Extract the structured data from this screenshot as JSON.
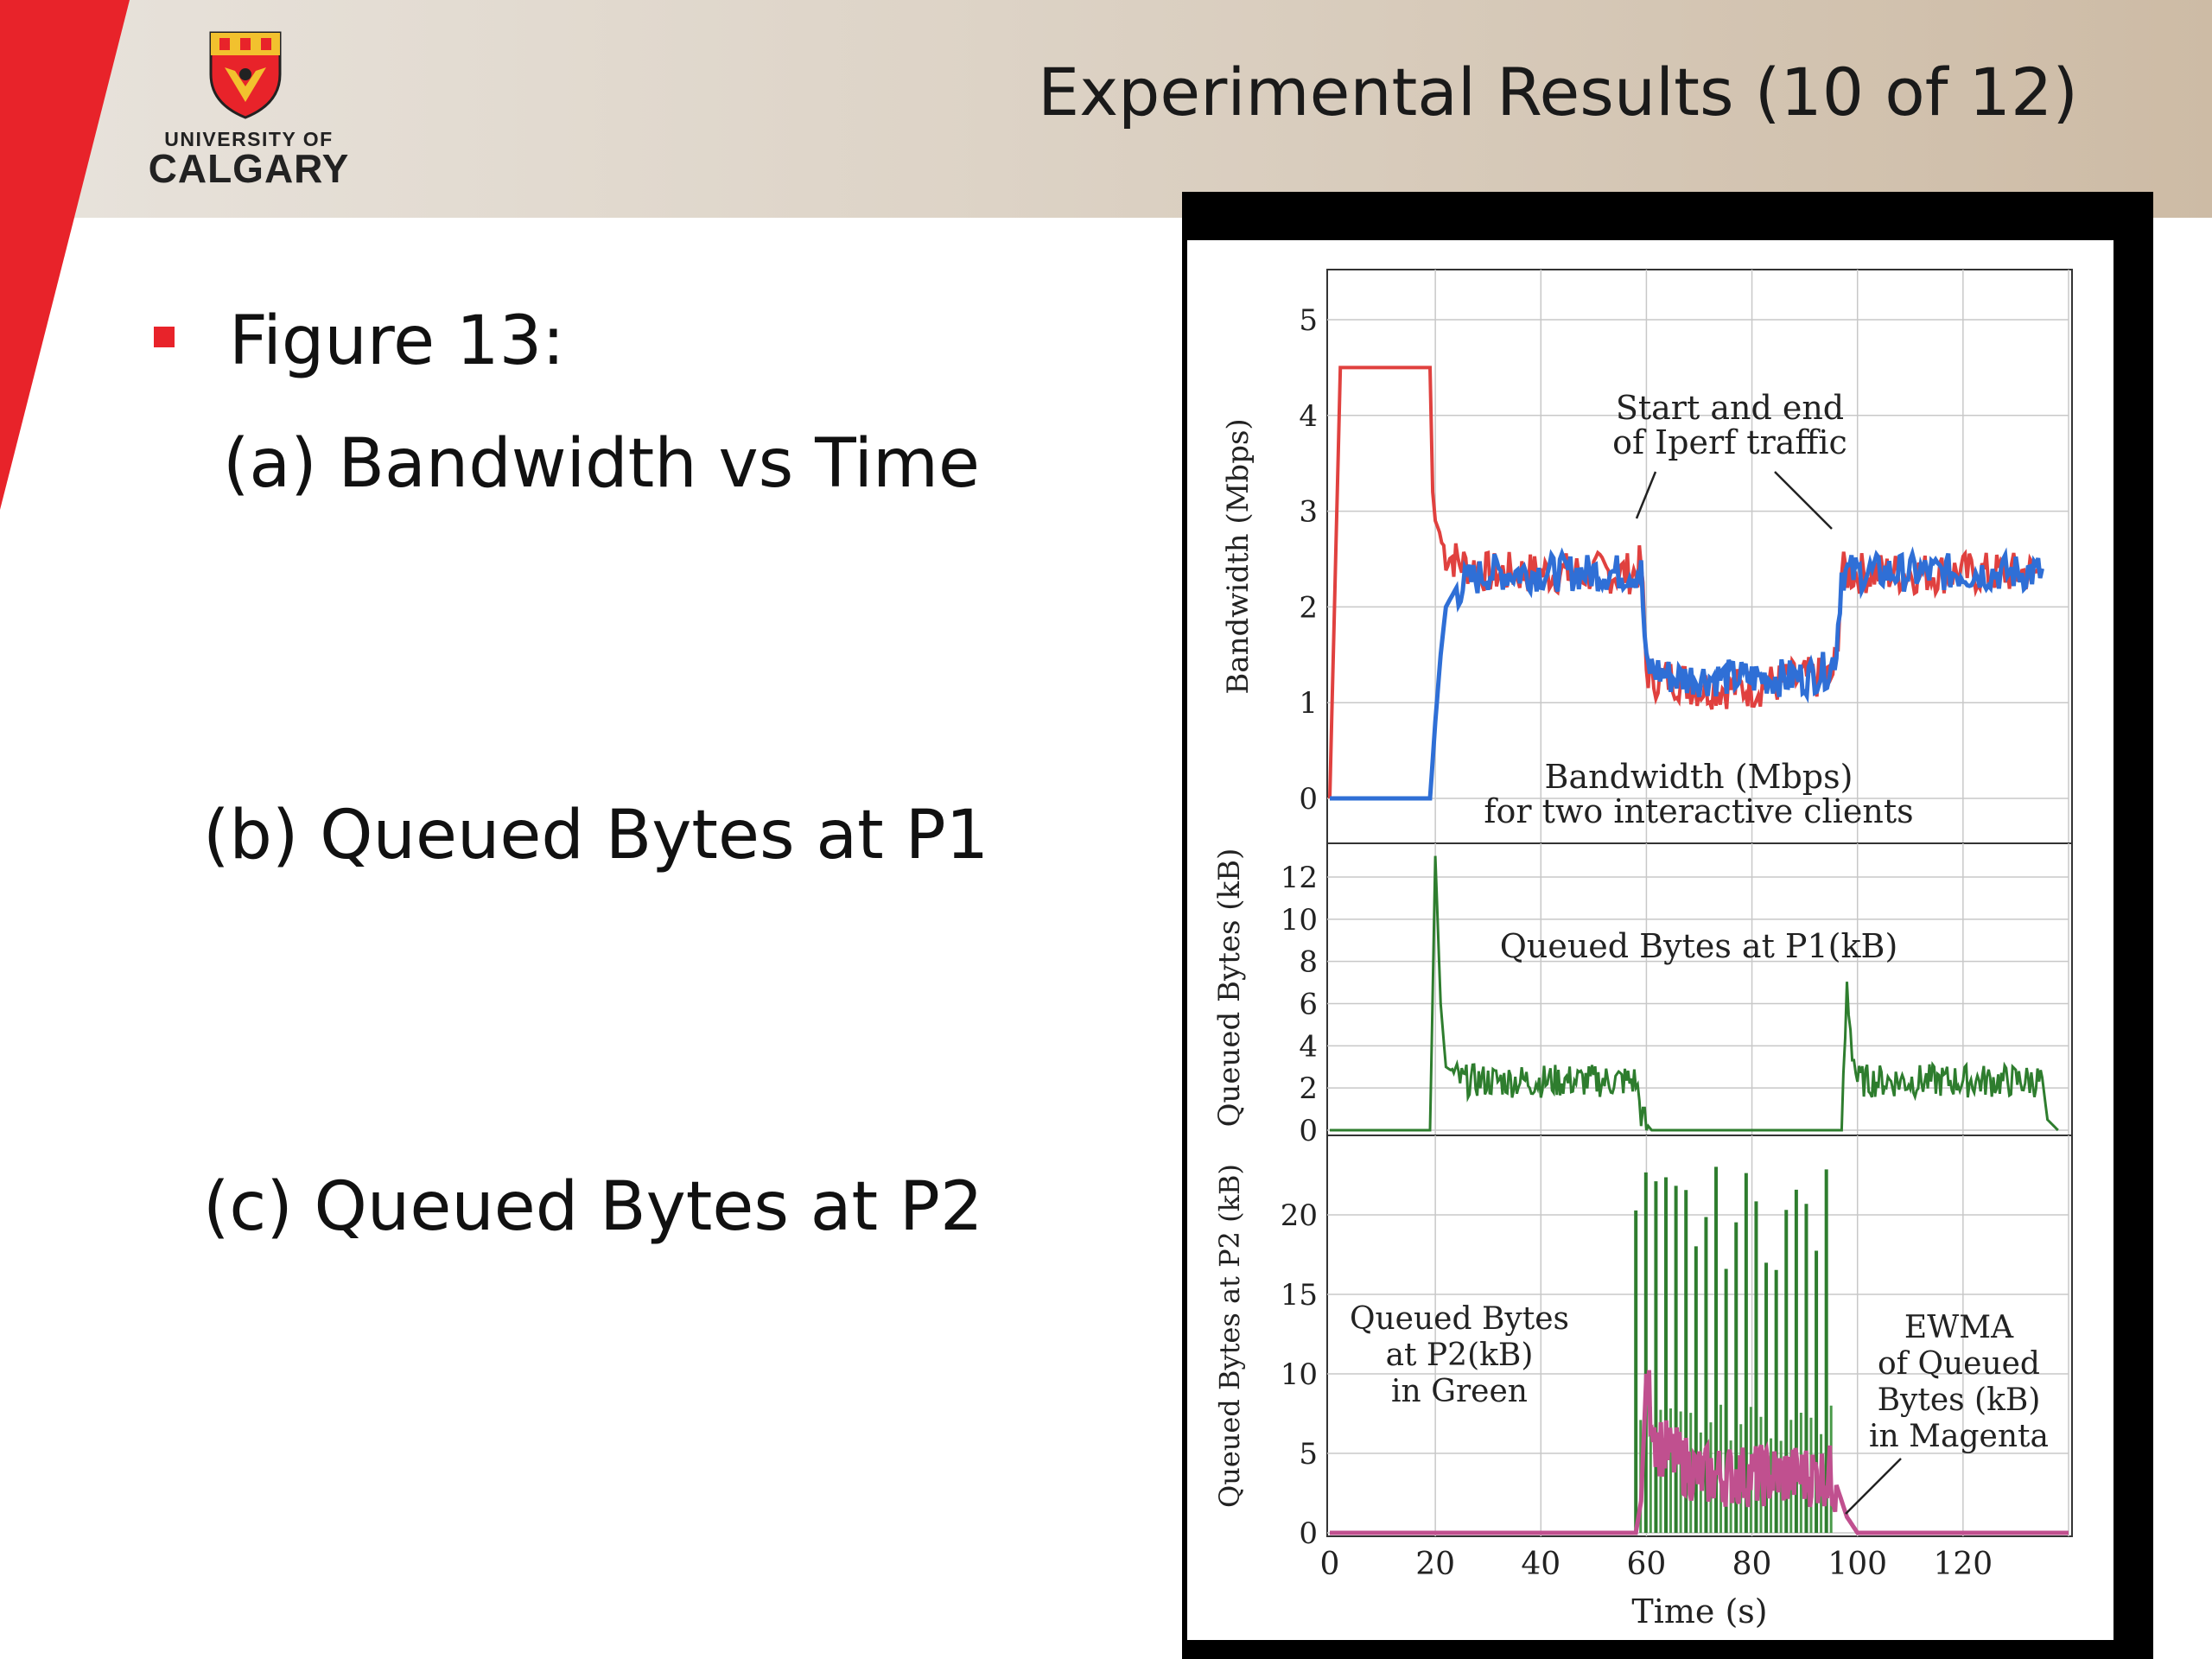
{
  "header": {
    "title": "Experimental Results (10 of 12)",
    "logo": {
      "line1": "UNIVERSITY OF",
      "line2": "CALGARY"
    }
  },
  "body": {
    "figure_label": "Figure 13:",
    "item_a": "(a) Bandwidth vs Time",
    "item_b": "(b) Queued Bytes at P1",
    "item_c": "(c) Queued Bytes at P2"
  },
  "colors": {
    "accent_red": "#e8232a",
    "series_red": "#e0413f",
    "series_blue": "#2f6fd6",
    "series_green": "#2e7d2e",
    "series_magenta": "#c0508f"
  },
  "chart_data": [
    {
      "type": "line",
      "ylabel": "Bandwidth (Mbps)",
      "ylim": [
        0,
        5
      ],
      "xlim": [
        0,
        140
      ],
      "yticks": [
        "0",
        "1",
        "2",
        "3",
        "4",
        "5"
      ],
      "grid": true,
      "annotations": [
        "Start and end",
        "of Iperf traffic",
        "Bandwidth (Mbps)",
        "for two interactive clients"
      ],
      "series": [
        {
          "color": "#e0413f",
          "x": [
            0,
            2,
            19,
            19.5,
            20,
            22,
            25,
            30,
            40,
            50,
            58,
            59,
            60,
            61,
            65,
            70,
            80,
            90,
            95,
            96,
            97,
            100,
            110,
            120,
            130,
            135
          ],
          "y": [
            0,
            4.5,
            4.5,
            3.2,
            2.9,
            2.6,
            2.5,
            2.4,
            2.4,
            2.4,
            2.4,
            2.5,
            1.4,
            1.3,
            1.3,
            1.2,
            1.2,
            1.3,
            1.3,
            1.5,
            2.4,
            2.4,
            2.4,
            2.4,
            2.4,
            2.4
          ]
        },
        {
          "color": "#2f6fd6",
          "x": [
            0,
            19,
            20,
            21,
            22,
            24,
            26,
            30,
            40,
            50,
            58,
            59,
            60,
            61,
            65,
            70,
            80,
            90,
            95,
            96,
            97,
            100,
            110,
            120,
            130,
            135
          ],
          "y": [
            0,
            0,
            0.8,
            1.5,
            2.0,
            2.2,
            2.3,
            2.4,
            2.4,
            2.4,
            2.4,
            2.4,
            1.4,
            1.4,
            1.3,
            1.3,
            1.3,
            1.3,
            1.4,
            1.6,
            2.4,
            2.4,
            2.4,
            2.4,
            2.4,
            2.4
          ]
        }
      ]
    },
    {
      "type": "line",
      "ylabel": "Queued Bytes (kB)",
      "ylim": [
        0,
        13
      ],
      "yticks": [
        "0",
        "2",
        "4",
        "6",
        "8",
        "10",
        "12"
      ],
      "grid": true,
      "annotations": [
        "Queued Bytes at P1(kB)"
      ],
      "series": [
        {
          "color": "#2e7d2e",
          "x": [
            0,
            19,
            20,
            21,
            22,
            25,
            30,
            40,
            50,
            58,
            59,
            60,
            61,
            96,
            97,
            98,
            99,
            100,
            110,
            120,
            130,
            135,
            136,
            138
          ],
          "y": [
            0,
            0,
            13,
            6,
            3,
            2.5,
            2.5,
            2.5,
            2.5,
            2.5,
            1,
            0.3,
            0,
            0,
            0,
            7,
            4,
            2.5,
            2.5,
            2.5,
            2.5,
            2.5,
            0.5,
            0
          ]
        }
      ]
    },
    {
      "type": "line",
      "xlabel": "Time (s)",
      "ylabel": "Queued Bytes at P2 (kB)",
      "ylim": [
        0,
        25
      ],
      "xlim": [
        0,
        140
      ],
      "xticks": [
        "0",
        "20",
        "40",
        "60",
        "80",
        "100",
        "120"
      ],
      "yticks": [
        "0",
        "5",
        "10",
        "15",
        "20"
      ],
      "grid": true,
      "annotations": [
        "Queued Bytes",
        "at P2(kB)",
        "in Green",
        "EWMA",
        "of Queued",
        "Bytes (kB)",
        "in Magenta"
      ],
      "series": [
        {
          "name": "Queued Bytes at P2(kB)",
          "color": "#2e7d2e",
          "peaks_range": [
            58,
            96
          ],
          "peak_value": 22
        },
        {
          "name": "EWMA of Queued Bytes (kB)",
          "color": "#c0508f",
          "x": [
            0,
            58,
            59,
            60,
            62,
            70,
            80,
            90,
            95,
            96,
            98,
            100,
            140
          ],
          "y": [
            0,
            0,
            2,
            10,
            6,
            4,
            4,
            4,
            4,
            3,
            1,
            0,
            0
          ]
        }
      ]
    }
  ]
}
